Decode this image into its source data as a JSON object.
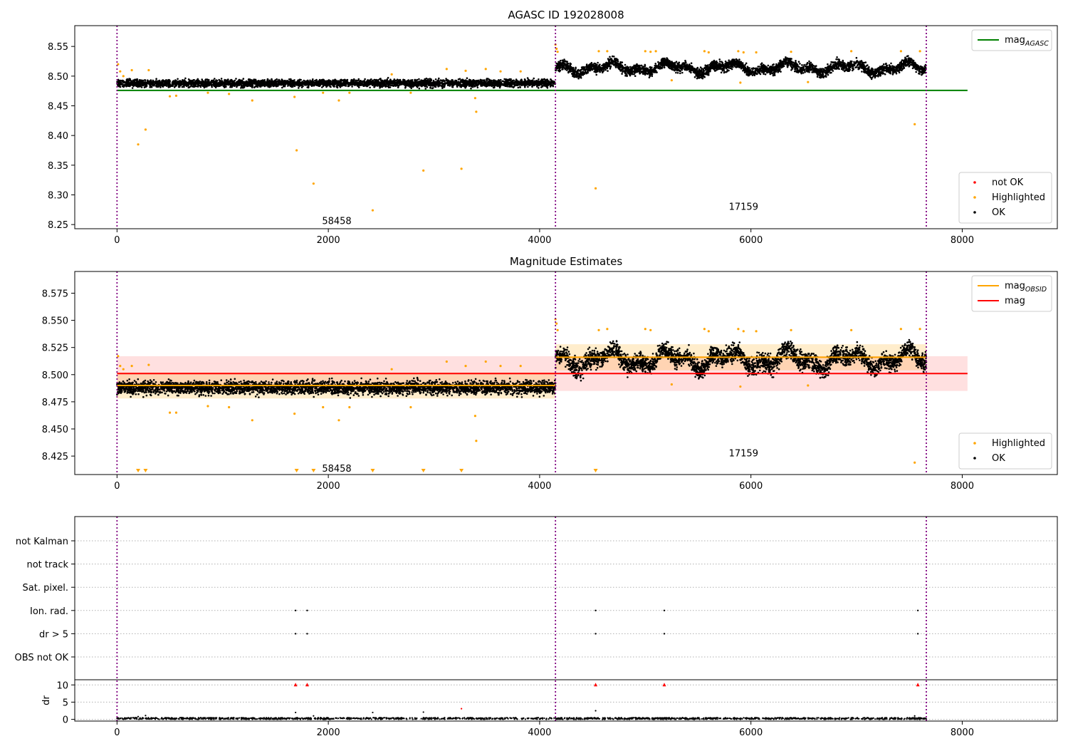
{
  "chart_data": [
    {
      "type": "scatter",
      "title": "AGASC ID 192028008",
      "xlim": [
        -400,
        8900
      ],
      "ylim": [
        8.243,
        8.585
      ],
      "xticks": [
        0,
        2000,
        4000,
        6000,
        8000
      ],
      "yticks": [
        8.25,
        8.3,
        8.35,
        8.4,
        8.45,
        8.5,
        8.55
      ],
      "ytick_decimals": 2,
      "obs_boundaries": [
        0,
        4150,
        7660
      ],
      "obs_labels": [
        {
          "text": "58458",
          "x": 2080,
          "y": 8.257
        },
        {
          "text": "17159",
          "x": 5930,
          "y": 8.281
        }
      ],
      "series": [
        {
          "name": "OK",
          "color": "#000000",
          "segments": [
            {
              "x0": 0,
              "x1": 4150,
              "y_center": 8.488,
              "y_spread": 0.012
            },
            {
              "x0": 4150,
              "x1": 7660,
              "y_center": 8.514,
              "y_spread": 0.016
            }
          ]
        },
        {
          "name": "Highlighted",
          "color": "#ffa500",
          "points": [
            [
              10,
              8.52
            ],
            [
              30,
              8.508
            ],
            [
              60,
              8.5
            ],
            [
              140,
              8.51
            ],
            [
              200,
              8.385
            ],
            [
              270,
              8.41
            ],
            [
              300,
              8.51
            ],
            [
              500,
              8.466
            ],
            [
              560,
              8.467
            ],
            [
              860,
              8.472
            ],
            [
              1060,
              8.47
            ],
            [
              1280,
              8.459
            ],
            [
              1680,
              8.465
            ],
            [
              1700,
              8.375
            ],
            [
              1860,
              8.319
            ],
            [
              1950,
              8.472
            ],
            [
              2100,
              8.459
            ],
            [
              2200,
              8.472
            ],
            [
              2420,
              8.274
            ],
            [
              2600,
              8.503
            ],
            [
              2780,
              8.472
            ],
            [
              2900,
              8.341
            ],
            [
              3120,
              8.512
            ],
            [
              3260,
              8.344
            ],
            [
              3300,
              8.509
            ],
            [
              3390,
              8.463
            ],
            [
              3400,
              8.44
            ],
            [
              3490,
              8.512
            ],
            [
              3630,
              8.508
            ],
            [
              3820,
              8.508
            ],
            [
              4150,
              8.553
            ],
            [
              4160,
              8.546
            ],
            [
              4170,
              8.541
            ],
            [
              4530,
              8.311
            ],
            [
              4560,
              8.542
            ],
            [
              4640,
              8.542
            ],
            [
              5000,
              8.542
            ],
            [
              5050,
              8.541
            ],
            [
              5100,
              8.542
            ],
            [
              5250,
              8.493
            ],
            [
              5560,
              8.542
            ],
            [
              5600,
              8.54
            ],
            [
              5880,
              8.542
            ],
            [
              5900,
              8.489
            ],
            [
              5930,
              8.54
            ],
            [
              6050,
              8.54
            ],
            [
              6380,
              8.541
            ],
            [
              6540,
              8.49
            ],
            [
              6950,
              8.542
            ],
            [
              7420,
              8.542
            ],
            [
              7550,
              8.419
            ],
            [
              7600,
              8.542
            ]
          ]
        }
      ],
      "hlines": [
        {
          "name": "mag",
          "sub": "AGASC",
          "color": "#008000",
          "y": 8.476,
          "x0": 0,
          "x1": 8050
        }
      ],
      "legends": [
        {
          "position": "top-right",
          "items": [
            {
              "kind": "line",
              "label": "mag",
              "sub": "AGASC",
              "color": "#008000"
            }
          ]
        },
        {
          "position": "bottom-right",
          "items": [
            {
              "kind": "dot",
              "label": "not OK",
              "color": "#ff0000"
            },
            {
              "kind": "dot",
              "label": "Highlighted",
              "color": "#ffa500"
            },
            {
              "kind": "dot",
              "label": "OK",
              "color": "#000000"
            }
          ]
        }
      ]
    },
    {
      "type": "scatter",
      "title": "Magnitude Estimates",
      "xlim": [
        -400,
        8900
      ],
      "ylim": [
        8.408,
        8.595
      ],
      "xticks": [
        0,
        2000,
        4000,
        6000,
        8000
      ],
      "yticks": [
        8.425,
        8.45,
        8.475,
        8.5,
        8.525,
        8.55,
        8.575
      ],
      "ytick_decimals": 3,
      "obs_boundaries": [
        0,
        4150,
        7660
      ],
      "obs_labels": [
        {
          "text": "58458",
          "x": 2080,
          "y": 8.414
        },
        {
          "text": "17159",
          "x": 5930,
          "y": 8.428
        }
      ],
      "series": [
        {
          "name": "OK",
          "color": "#000000",
          "segments": [
            {
              "x0": 0,
              "x1": 4150,
              "y_center": 8.488,
              "y_spread": 0.012
            },
            {
              "x0": 4150,
              "x1": 7660,
              "y_center": 8.514,
              "y_spread": 0.016
            }
          ]
        },
        {
          "name": "Highlighted",
          "color": "#ffa500",
          "points": [
            [
              10,
              8.517
            ],
            [
              30,
              8.508
            ],
            [
              60,
              8.505
            ],
            [
              140,
              8.508
            ],
            [
              300,
              8.509
            ],
            [
              500,
              8.465
            ],
            [
              560,
              8.465
            ],
            [
              860,
              8.471
            ],
            [
              1060,
              8.47
            ],
            [
              1280,
              8.458
            ],
            [
              1680,
              8.464
            ],
            [
              1950,
              8.47
            ],
            [
              2100,
              8.458
            ],
            [
              2200,
              8.47
            ],
            [
              2600,
              8.505
            ],
            [
              2780,
              8.47
            ],
            [
              3120,
              8.512
            ],
            [
              3300,
              8.508
            ],
            [
              3390,
              8.462
            ],
            [
              3400,
              8.439
            ],
            [
              3490,
              8.512
            ],
            [
              3630,
              8.508
            ],
            [
              3820,
              8.508
            ],
            [
              4150,
              8.551
            ],
            [
              4160,
              8.547
            ],
            [
              4170,
              8.541
            ],
            [
              4560,
              8.541
            ],
            [
              4640,
              8.542
            ],
            [
              5000,
              8.542
            ],
            [
              5050,
              8.541
            ],
            [
              5250,
              8.491
            ],
            [
              5560,
              8.542
            ],
            [
              5600,
              8.54
            ],
            [
              5880,
              8.542
            ],
            [
              5900,
              8.489
            ],
            [
              5930,
              8.54
            ],
            [
              6050,
              8.54
            ],
            [
              6380,
              8.541
            ],
            [
              6540,
              8.49
            ],
            [
              6950,
              8.541
            ],
            [
              7420,
              8.542
            ],
            [
              7550,
              8.419
            ],
            [
              7600,
              8.542
            ]
          ]
        }
      ],
      "offscale_markers": {
        "color": "#ffa500",
        "x": [
          200,
          270,
          1700,
          1860,
          2420,
          2900,
          3260,
          4530
        ]
      },
      "hlines": [
        {
          "name": "mag",
          "sub": "OBSID",
          "color": "#ffa500",
          "y": 8.49,
          "x0": 0,
          "x1": 4150
        },
        {
          "name": "mag",
          "sub": "OBSID",
          "color": "#ffa500",
          "y": 8.516,
          "x0": 4150,
          "x1": 7660
        },
        {
          "name": "mag",
          "sub": "",
          "color": "#ff0000",
          "y": 8.501,
          "x0": 0,
          "x1": 8050
        }
      ],
      "bands": [
        {
          "color": "#ff0000",
          "opacity": 0.12,
          "y0": 8.485,
          "y1": 8.517,
          "x0": 0,
          "x1": 8050
        },
        {
          "color": "#ffa500",
          "opacity": 0.2,
          "y0": 8.478,
          "y1": 8.502,
          "x0": 0,
          "x1": 4150
        },
        {
          "color": "#ffa500",
          "opacity": 0.2,
          "y0": 8.504,
          "y1": 8.528,
          "x0": 4150,
          "x1": 7660
        }
      ],
      "legends": [
        {
          "position": "top-right",
          "items": [
            {
              "kind": "line",
              "label": "mag",
              "sub": "OBSID",
              "color": "#ffa500"
            },
            {
              "kind": "line",
              "label": "mag",
              "sub": "",
              "color": "#ff0000"
            }
          ]
        },
        {
          "position": "bottom-right",
          "items": [
            {
              "kind": "dot",
              "label": "Highlighted",
              "color": "#ffa500"
            },
            {
              "kind": "dot",
              "label": "OK",
              "color": "#000000"
            }
          ]
        }
      ]
    },
    {
      "type": "scatter",
      "title": "",
      "xlim": [
        -400,
        8900
      ],
      "xticks": [
        0,
        2000,
        4000,
        6000,
        8000
      ],
      "obs_boundaries": [
        0,
        4150,
        7660
      ],
      "flag_categories": [
        "not Kalman",
        "not track",
        "Sat. pixel.",
        "Ion. rad.",
        "dr > 5",
        "OBS not OK"
      ],
      "flag_points": {
        "Ion. rad.": [
          1690,
          1800,
          4530,
          5180,
          7580
        ],
        "dr > 5": [
          1690,
          1800,
          4530,
          5180,
          7580
        ]
      },
      "dr": {
        "ylabel": "dr",
        "ylim": [
          -0.5,
          11.5
        ],
        "yticks": [
          0,
          5,
          10
        ],
        "baseline": {
          "x0": 0,
          "x1": 7660,
          "y_max": 0.5
        },
        "points": [
          [
            200,
            0.8
          ],
          [
            270,
            1.1
          ],
          [
            1690,
            2
          ],
          [
            1860,
            1
          ],
          [
            2420,
            2
          ],
          [
            2900,
            2.1
          ],
          [
            3260,
            3.1
          ],
          [
            4530,
            2.5
          ],
          [
            7550,
            1
          ]
        ],
        "clipped_markers": {
          "color": "#ff0000",
          "x": [
            1690,
            1800,
            4530,
            5180,
            7580
          ],
          "y": 10
        }
      }
    }
  ]
}
